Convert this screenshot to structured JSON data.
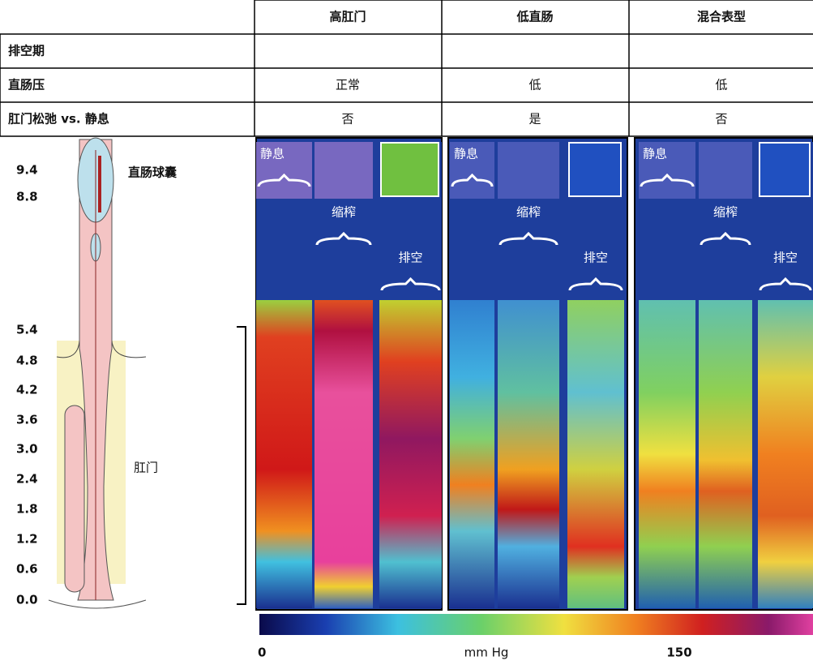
{
  "table": {
    "columns": [
      "高肛门",
      "低直肠",
      "混合表型"
    ],
    "rows": [
      {
        "label": "排空期"
      },
      {
        "label": "直肠压",
        "cells": [
          "正常",
          "低",
          "低"
        ]
      },
      {
        "label": "肛门松弛 vs. 静息",
        "cells": [
          "否",
          "是",
          "否"
        ]
      }
    ]
  },
  "depth_scale": {
    "labels": [
      "9.4",
      "8.8",
      "5.4",
      "4.8",
      "4.2",
      "3.6",
      "3.0",
      "2.4",
      "1.8",
      "1.2",
      "0.6",
      "0.0"
    ]
  },
  "anatomy": {
    "balloon_label": "直肠球囊",
    "anal_label": "肛门"
  },
  "panels": [
    {
      "labels": [
        "静息",
        "缩榨",
        "排空"
      ]
    },
    {
      "labels": [
        "静息",
        "缩榨",
        "排空"
      ]
    },
    {
      "labels": [
        "静息",
        "缩榨",
        "排空"
      ]
    }
  ],
  "colorbar": {
    "min_label": "0",
    "unit": "mm Hg",
    "max_label": "150"
  }
}
